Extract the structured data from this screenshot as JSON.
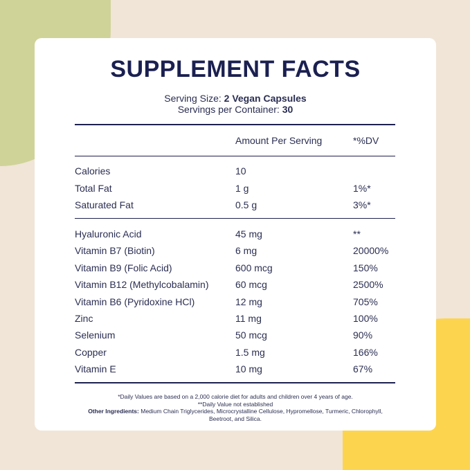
{
  "title": "SUPPLEMENT FACTS",
  "serving": {
    "size_label": "Serving Size:",
    "size_value": "2 Vegan Capsules",
    "per_container_label": "Servings per Container:",
    "per_container_value": "30"
  },
  "header": {
    "amount": "Amount Per Serving",
    "dv": "*%DV"
  },
  "group1": [
    {
      "name": "Calories",
      "amount": "10",
      "dv": ""
    },
    {
      "name": "Total Fat",
      "amount": "1 g",
      "dv": "1%*"
    },
    {
      "name": "Saturated Fat",
      "amount": "0.5 g",
      "dv": "3%*"
    }
  ],
  "group2": [
    {
      "name": "Hyaluronic Acid",
      "amount": "45 mg",
      "dv": "**"
    },
    {
      "name": "Vitamin B7 (Biotin)",
      "amount": "6 mg",
      "dv": "20000%"
    },
    {
      "name": "Vitamin B9 (Folic Acid)",
      "amount": "600 mcg",
      "dv": "150%"
    },
    {
      "name": "Vitamin B12 (Methylcobalamin)",
      "amount": "60 mcg",
      "dv": "2500%"
    },
    {
      "name": "Vitamin B6 (Pyridoxine HCl)",
      "amount": "12 mg",
      "dv": "705%"
    },
    {
      "name": "Zinc",
      "amount": "11 mg",
      "dv": "100%"
    },
    {
      "name": "Selenium",
      "amount": "50 mcg",
      "dv": "90%"
    },
    {
      "name": "Copper",
      "amount": "1.5 mg",
      "dv": "166%"
    },
    {
      "name": "Vitamin E",
      "amount": "10 mg",
      "dv": "67%"
    }
  ],
  "footnotes": {
    "daily_values": "*Daily Values are based on a 2,000 calorie diet for adults and children over 4 years of age.",
    "not_established": "**Daily Value not established",
    "other_label": "Other Ingredients:",
    "other_text": "Medium Chain Triglycerides, Microcrystalline Cellulose, Hypromellose, Turmeric, Chlorophyll, Beetroot, and Silica."
  },
  "colors": {
    "navy": "#1d2150",
    "background": "#f1e5d7",
    "green": "#cfd398",
    "yellow": "#fdd44e"
  }
}
